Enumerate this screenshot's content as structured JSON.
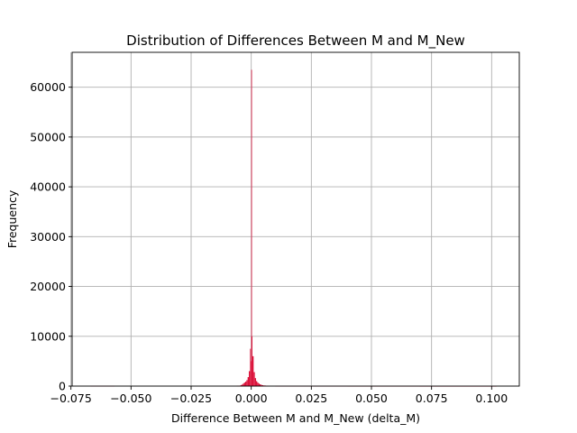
{
  "chart_data": {
    "type": "histogram",
    "title": "Distribution of Differences Between M and M_New",
    "xlabel": "Difference Between M and M_New (delta_M)",
    "ylabel": "Frequency",
    "xlim": [
      -0.0745,
      0.1115
    ],
    "ylim": [
      0,
      67000
    ],
    "xticks": [
      -0.075,
      -0.05,
      -0.025,
      0.0,
      0.025,
      0.05,
      0.075,
      0.1
    ],
    "xtick_labels": [
      "−0.075",
      "−0.050",
      "−0.025",
      "0.000",
      "0.025",
      "0.050",
      "0.075",
      "0.100"
    ],
    "yticks": [
      0,
      10000,
      20000,
      30000,
      40000,
      50000,
      60000
    ],
    "ytick_labels": [
      "0",
      "10000",
      "20000",
      "30000",
      "40000",
      "50000",
      "60000"
    ],
    "grid": true,
    "bar_color": "#dc143c",
    "bins": [
      {
        "x": -0.0045,
        "width": 0.0005,
        "value": 200
      },
      {
        "x": -0.004,
        "width": 0.0005,
        "value": 300
      },
      {
        "x": -0.0035,
        "width": 0.0005,
        "value": 500
      },
      {
        "x": -0.003,
        "width": 0.0005,
        "value": 700
      },
      {
        "x": -0.0025,
        "width": 0.0005,
        "value": 900
      },
      {
        "x": -0.002,
        "width": 0.0005,
        "value": 1200
      },
      {
        "x": -0.0015,
        "width": 0.0005,
        "value": 1800
      },
      {
        "x": -0.001,
        "width": 0.0005,
        "value": 3000
      },
      {
        "x": -0.0005,
        "width": 0.0003,
        "value": 7500
      },
      {
        "x": -0.0002,
        "width": 0.0002,
        "value": 5000
      },
      {
        "x": 0.0,
        "width": 0.0002,
        "value": 63500
      },
      {
        "x": 0.0002,
        "width": 0.0003,
        "value": 10000
      },
      {
        "x": 0.0005,
        "width": 0.0005,
        "value": 6000
      },
      {
        "x": 0.001,
        "width": 0.0005,
        "value": 2800
      },
      {
        "x": 0.0015,
        "width": 0.0005,
        "value": 1600
      },
      {
        "x": 0.002,
        "width": 0.0005,
        "value": 1000
      },
      {
        "x": 0.0025,
        "width": 0.0005,
        "value": 700
      },
      {
        "x": 0.003,
        "width": 0.0005,
        "value": 500
      },
      {
        "x": 0.0035,
        "width": 0.0005,
        "value": 350
      },
      {
        "x": 0.004,
        "width": 0.0005,
        "value": 250
      },
      {
        "x": 0.0045,
        "width": 0.0005,
        "value": 180
      },
      {
        "x": 0.005,
        "width": 0.001,
        "value": 120
      },
      {
        "x": 0.006,
        "width": 0.001,
        "value": 60
      },
      {
        "x": -0.006,
        "width": 0.001,
        "value": 80
      },
      {
        "x": -0.0668,
        "width": 0.01,
        "value": 40
      },
      {
        "x": 0.01,
        "width": 0.03,
        "value": 20
      },
      {
        "x": 0.04,
        "width": 0.03,
        "value": 15
      },
      {
        "x": 0.07,
        "width": 0.032,
        "value": 10
      }
    ]
  }
}
